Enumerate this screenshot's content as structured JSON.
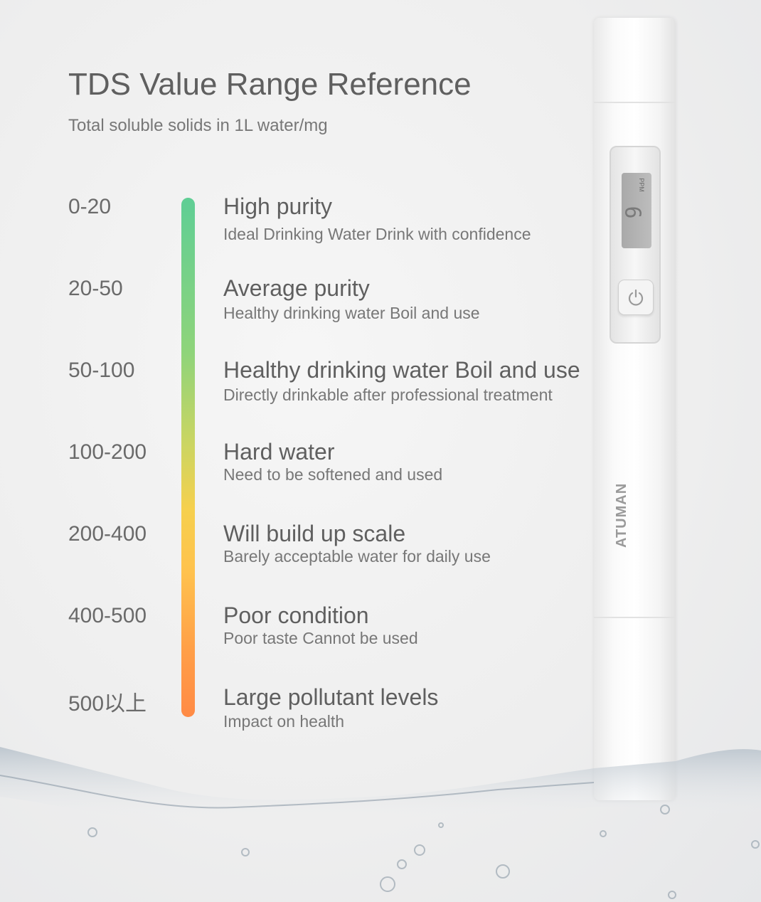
{
  "header": {
    "title": "TDS Value Range Reference",
    "subtitle": "Total soluble solids in 1L water/mg"
  },
  "scale": {
    "gradient_colors": [
      "#5fce95",
      "#f6d04e",
      "#ff8a45"
    ],
    "rows": [
      {
        "range": "0-20",
        "heading": "High purity",
        "description": "Ideal Drinking Water Drink with confidence"
      },
      {
        "range": "20-50",
        "heading": "Average purity",
        "description": "Healthy drinking water Boil and use"
      },
      {
        "range": "50-100",
        "heading": "Healthy drinking water Boil and use",
        "description": "Directly drinkable after professional treatment"
      },
      {
        "range": "100-200",
        "heading": "Hard water",
        "description": "Need to be softened and used"
      },
      {
        "range": "200-400",
        "heading": "Will build up scale",
        "description": "Barely acceptable water for daily use"
      },
      {
        "range": "400-500",
        "heading": "Poor condition",
        "description": "Poor taste Cannot be used"
      },
      {
        "range": "500以上",
        "heading": "Large pollutant levels",
        "description": "Impact on health"
      }
    ]
  },
  "device": {
    "display_value": "6",
    "display_unit": "PPM",
    "brand": "ATUMAN",
    "power_icon": "power-icon"
  }
}
